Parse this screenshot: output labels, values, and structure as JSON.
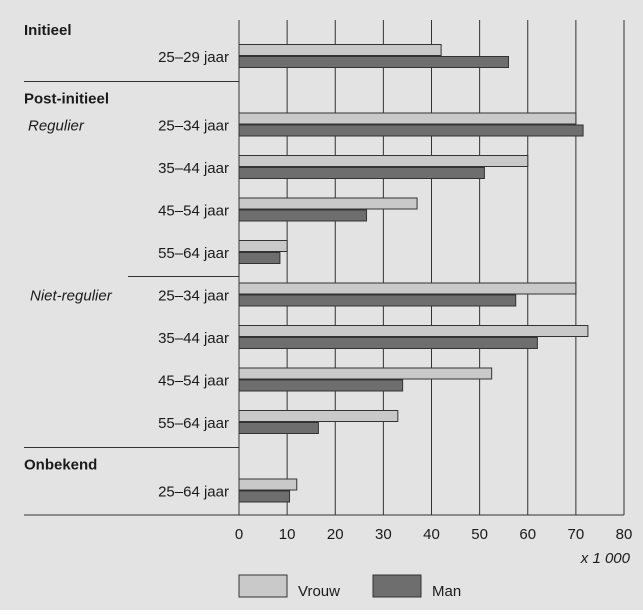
{
  "chart_data": {
    "type": "bar",
    "orientation": "horizontal",
    "groups": [
      {
        "label": "Initieel",
        "rows": [
          {
            "sub": "",
            "age": "25–29 jaar",
            "vrouw": 42,
            "man": 56
          }
        ]
      },
      {
        "label": "Post-initieel",
        "rows": [
          {
            "sub": "Regulier",
            "age": "25–34 jaar",
            "vrouw": 70,
            "man": 71.5
          },
          {
            "sub": "",
            "age": "35–44 jaar",
            "vrouw": 60,
            "man": 51
          },
          {
            "sub": "",
            "age": "45–54 jaar",
            "vrouw": 37,
            "man": 26.5
          },
          {
            "sub": "",
            "age": "55–64 jaar",
            "vrouw": 10,
            "man": 8.5
          },
          {
            "sub": "Niet-regulier",
            "age": "25–34 jaar",
            "vrouw": 70,
            "man": 57.5
          },
          {
            "sub": "",
            "age": "35–44 jaar",
            "vrouw": 72.5,
            "man": 62
          },
          {
            "sub": "",
            "age": "45–54 jaar",
            "vrouw": 52.5,
            "man": 34
          },
          {
            "sub": "",
            "age": "55–64 jaar",
            "vrouw": 33,
            "man": 16.5
          }
        ]
      },
      {
        "label": "Onbekend",
        "rows": [
          {
            "sub": "",
            "age": "25–64 jaar",
            "vrouw": 12,
            "man": 10.5
          }
        ]
      }
    ],
    "series": [
      {
        "name": "Vrouw",
        "color": "#c9c9c9"
      },
      {
        "name": "Man",
        "color": "#6e6e6e"
      }
    ],
    "x_ticks": [
      "0",
      "10",
      "20",
      "30",
      "40",
      "50",
      "60",
      "70",
      "80"
    ],
    "xlim": [
      0,
      80
    ],
    "x_unit_label": "x 1 000",
    "grid": true,
    "legend_position": "bottom"
  }
}
